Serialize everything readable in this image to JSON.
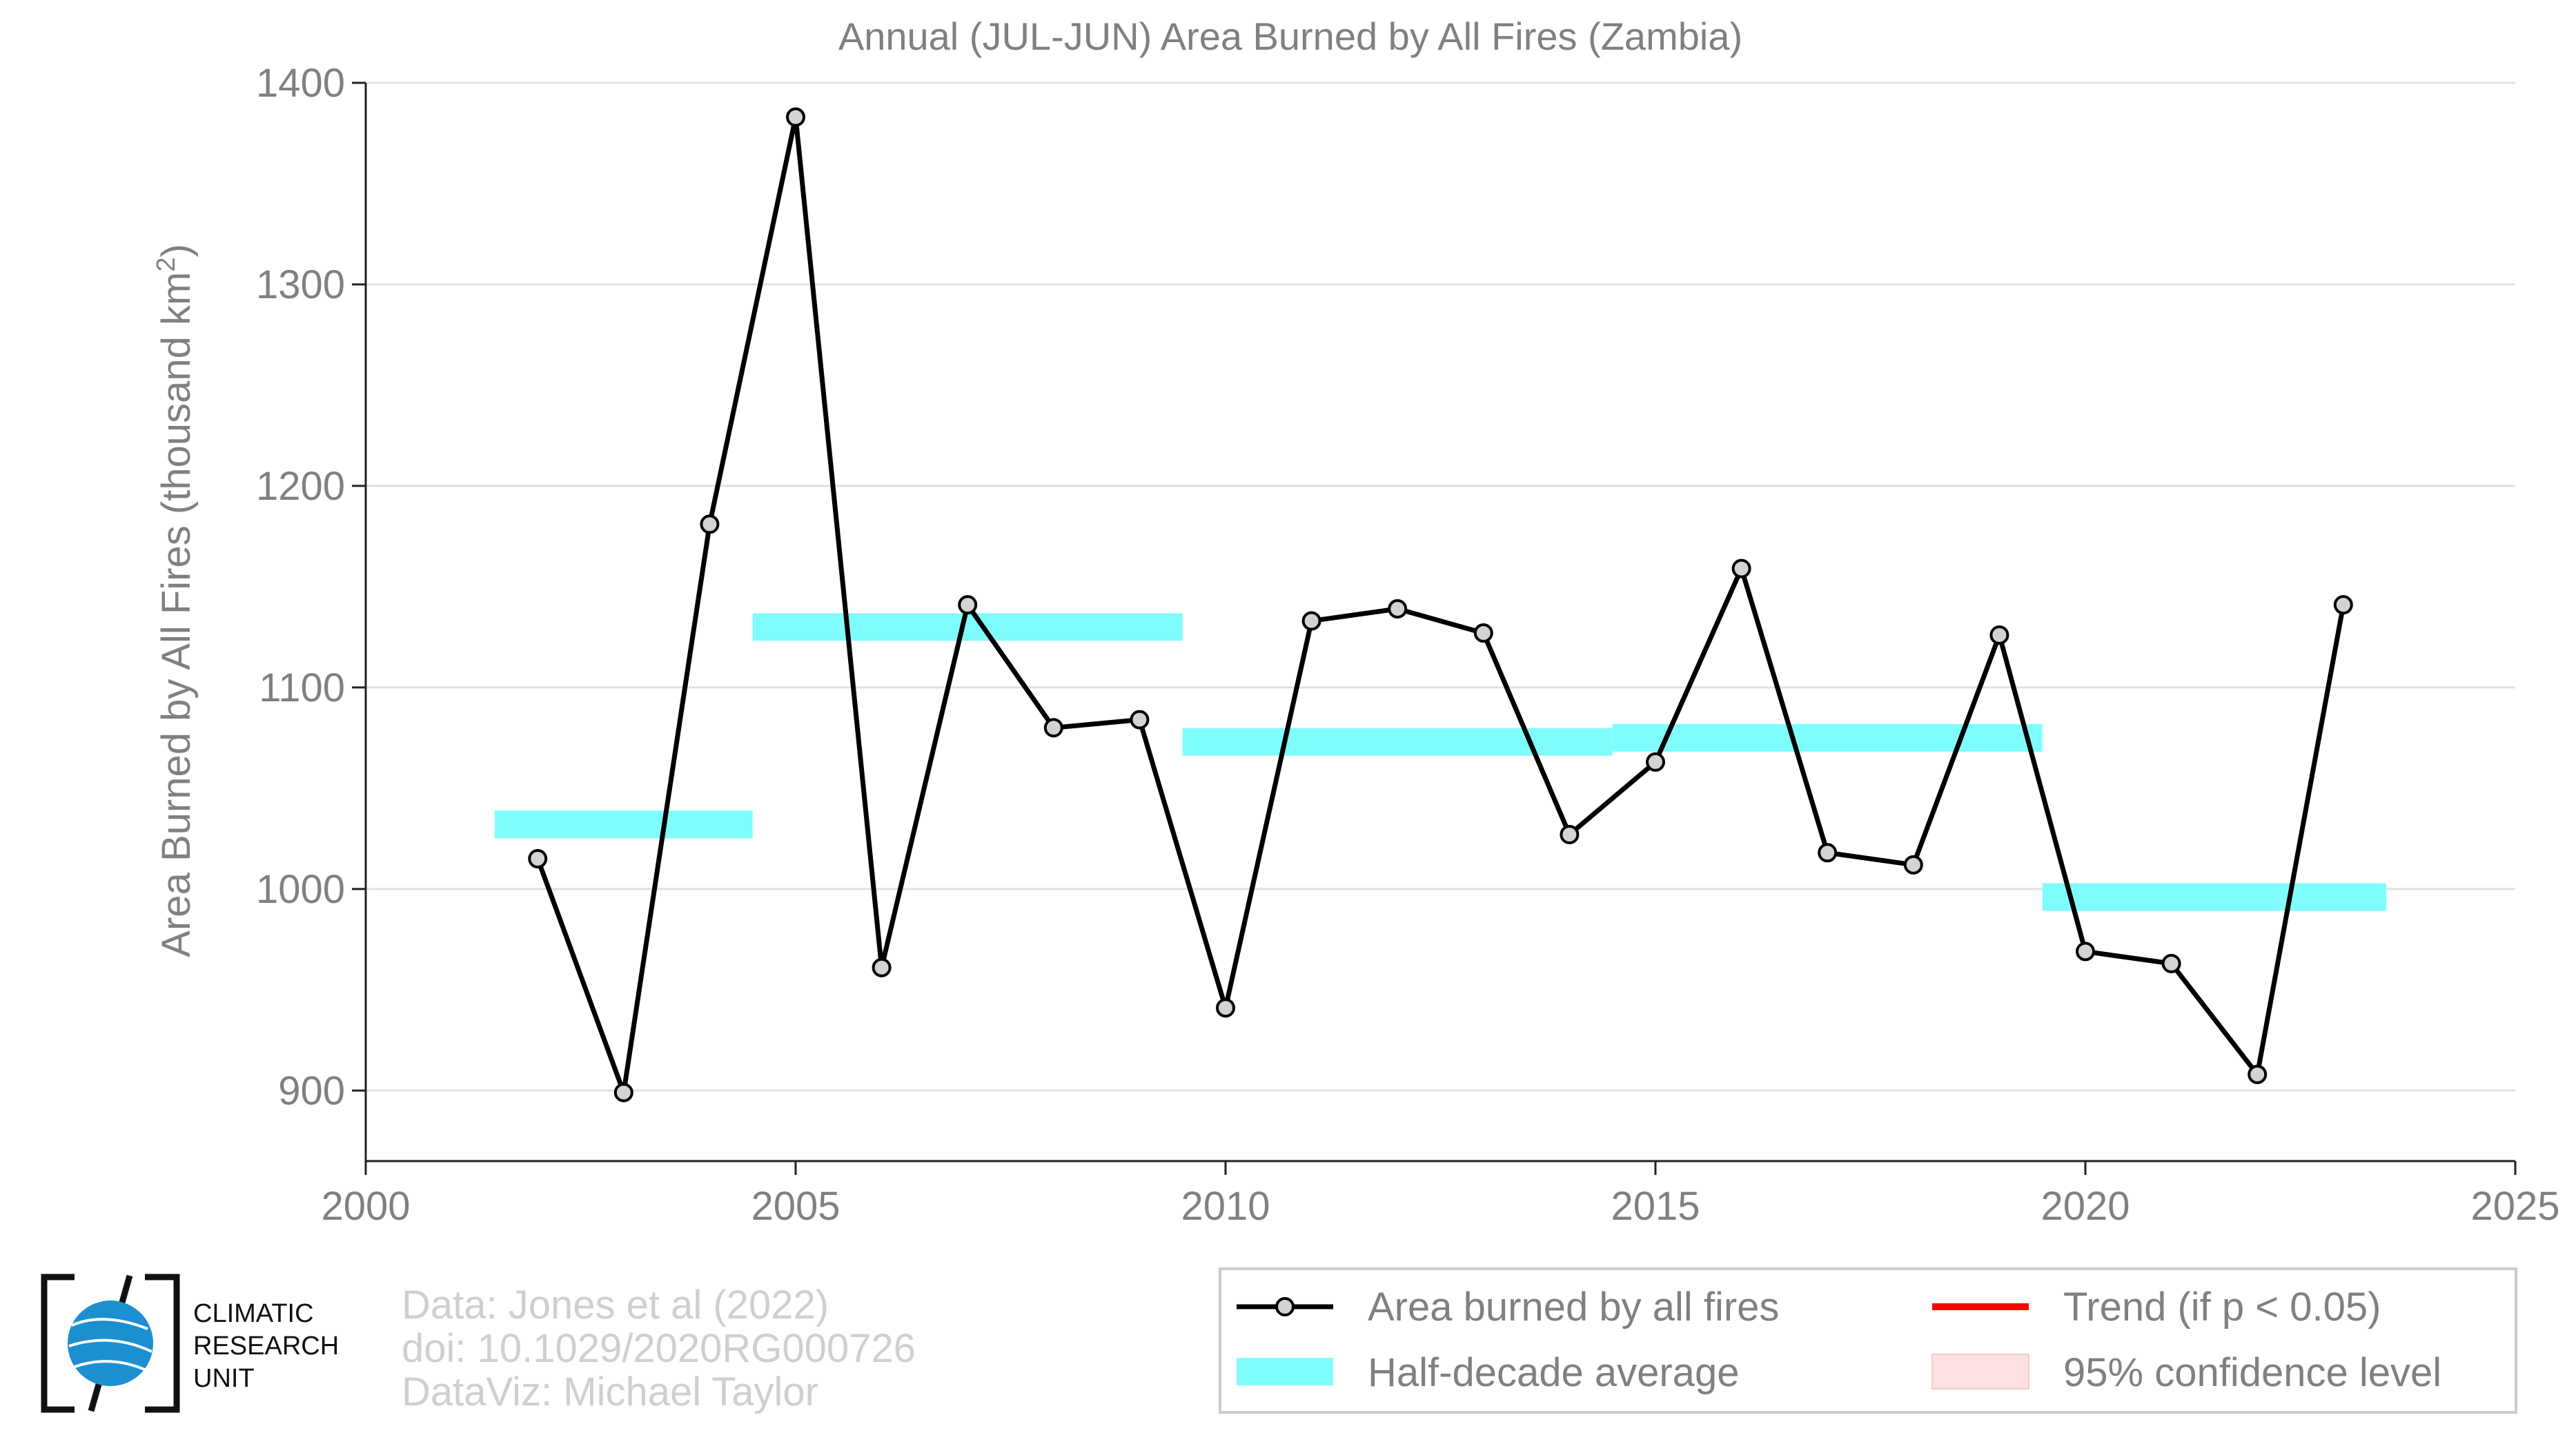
{
  "chart_data": {
    "type": "line",
    "title": "Annual (JUL-JUN) Area Burned by All Fires (Zambia)",
    "xlabel": "",
    "ylabel": "Area Burned by All Fires (thousand km",
    "ylabel_sup": "2",
    "ylabel_close": ")",
    "xlim": [
      2000,
      2025
    ],
    "ylim": [
      865,
      1400
    ],
    "xticks": [
      2000,
      2005,
      2010,
      2015,
      2020,
      2025
    ],
    "yticks": [
      900,
      1000,
      1100,
      1200,
      1300,
      1400
    ],
    "grid": "horizontal",
    "series": [
      {
        "name": "Area burned by all fires",
        "color": "#000000",
        "marker_fill": "#d3d3d3",
        "x": [
          2002,
          2003,
          2004,
          2005,
          2006,
          2007,
          2008,
          2009,
          2010,
          2011,
          2012,
          2013,
          2014,
          2015,
          2016,
          2017,
          2018,
          2019,
          2020,
          2021,
          2022,
          2023
        ],
        "y": [
          1015,
          899,
          1181,
          1383,
          961,
          1141,
          1080,
          1084,
          941,
          1133,
          1139,
          1127,
          1027,
          1063,
          1159,
          1018,
          1012,
          1126,
          969,
          963,
          908,
          1141
        ]
      }
    ],
    "half_decade_average": {
      "name": "Half-decade average",
      "color": "#7ffdfd",
      "segments": [
        {
          "x0": 2001.5,
          "x1": 2004.5,
          "y": 1032
        },
        {
          "x0": 2004.5,
          "x1": 2009.5,
          "y": 1130
        },
        {
          "x0": 2009.5,
          "x1": 2014.5,
          "y": 1073
        },
        {
          "x0": 2014.5,
          "x1": 2019.5,
          "y": 1075
        },
        {
          "x0": 2019.5,
          "x1": 2023.5,
          "y": 996
        }
      ]
    },
    "legend": {
      "placement": "bottom-right",
      "items": [
        {
          "label": "Area burned by all fires",
          "kind": "line-marker",
          "color": "#000000"
        },
        {
          "label": "Trend (if p < 0.05)",
          "kind": "line",
          "color": "#ff0000"
        },
        {
          "label": "Half-decade average",
          "kind": "band",
          "color": "#7ffdfd"
        },
        {
          "label": "95% confidence level",
          "kind": "band",
          "color": "#fde0e0"
        }
      ]
    }
  },
  "credits": {
    "line1": "Data: Jones et al (2022)",
    "line2": "doi: 10.1029/2020RG000726",
    "line3": "DataViz: Michael Taylor"
  },
  "logo": {
    "line1": "CLIMATIC",
    "line2": "RESEARCH",
    "line3": "UNIT"
  },
  "colors": {
    "axis_text": "#808080",
    "grid": "#e0e0e0",
    "credits": "#cfcfcf"
  }
}
